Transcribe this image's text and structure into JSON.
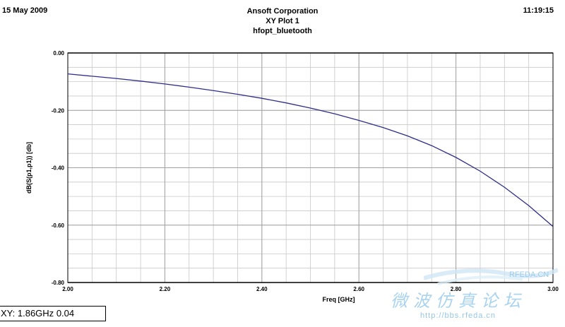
{
  "header": {
    "date": "15 May 2009",
    "company": "Ansoft Corporation",
    "plot_name": "XY Plot 1",
    "design_name": "hfopt_bluetooth",
    "time": "11:19:15"
  },
  "cursor_readout": {
    "prefix": "XY:",
    "x": "1.86GHz",
    "y": "0.04"
  },
  "watermark": {
    "brand": "RFEDA.CN",
    "forum_name": "微波仿真论坛",
    "url": "http://bbs.rfeda.cn"
  },
  "colors": {
    "curve": "#2e2e8a",
    "grid": "#c8c8c8",
    "frame": "#000000",
    "watermark": "#a9d3ee"
  },
  "chart_data": {
    "type": "line",
    "title": "",
    "xlabel": "Freq [GHz]",
    "ylabel": "dB(S(p1,p1)) [db]",
    "xlim": [
      2.0,
      3.0
    ],
    "ylim": [
      -0.8,
      0.0
    ],
    "x_ticks": [
      "2.00",
      "2.20",
      "2.40",
      "2.60",
      "2.80",
      "3.00"
    ],
    "y_ticks": [
      "0.00",
      "-0.20",
      "-0.40",
      "-0.60",
      "-0.80"
    ],
    "x_minor_step": 0.05,
    "y_minor_step": 0.05,
    "grid": true,
    "legend": "none",
    "series": [
      {
        "x": [
          2.0,
          2.05,
          2.1,
          2.15,
          2.2,
          2.25,
          2.3,
          2.35,
          2.4,
          2.45,
          2.5,
          2.55,
          2.6,
          2.65,
          2.7,
          2.75,
          2.8,
          2.85,
          2.9,
          2.95,
          3.0
        ],
        "values": [
          -0.073,
          -0.081,
          -0.089,
          -0.098,
          -0.108,
          -0.119,
          -0.131,
          -0.144,
          -0.158,
          -0.174,
          -0.192,
          -0.212,
          -0.235,
          -0.26,
          -0.289,
          -0.323,
          -0.364,
          -0.412,
          -0.468,
          -0.532,
          -0.605
        ]
      }
    ]
  }
}
